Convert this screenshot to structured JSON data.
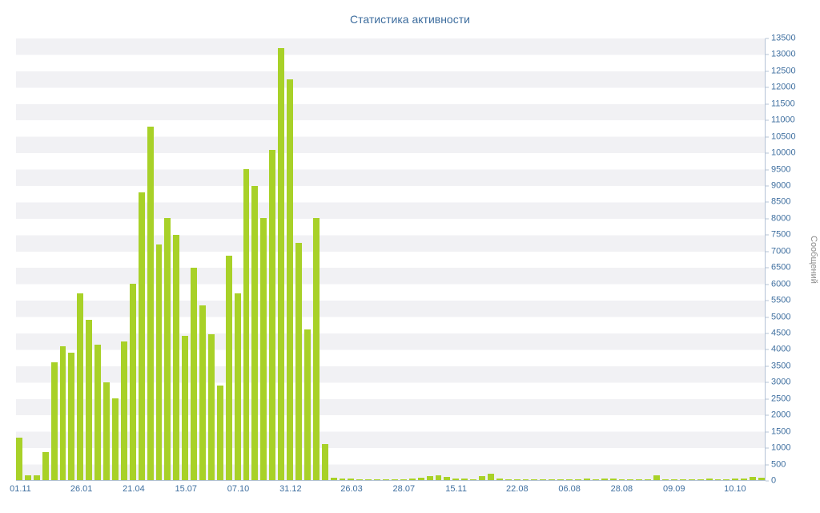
{
  "chart": {
    "title": "Статистика активности",
    "y_axis_title": "Сообщений",
    "colors": {
      "bar": "#a8d128",
      "axis_text": "#4070a0",
      "title_text": "#3d6d9e",
      "stripe": "#f1f1f4",
      "axis_line": "#b4c3d6",
      "y_title_text": "#8b8b8b"
    }
  },
  "chart_data": {
    "type": "bar",
    "title": "Статистика активности",
    "xlabel": "",
    "ylabel": "Сообщений",
    "ylim": [
      0,
      13500
    ],
    "y_tick_step": 500,
    "grid": "horizontal-stripes",
    "legend": "none",
    "y_ticks": [
      0,
      500,
      1000,
      1500,
      2000,
      2500,
      3000,
      3500,
      4000,
      4500,
      5000,
      5500,
      6000,
      6500,
      7000,
      7500,
      8000,
      8500,
      9000,
      9500,
      10000,
      10500,
      11000,
      11500,
      12000,
      12500,
      13000,
      13500
    ],
    "values": [
      1300,
      150,
      150,
      850,
      3600,
      4100,
      3900,
      5700,
      4900,
      4150,
      3000,
      2500,
      4250,
      6000,
      8800,
      10800,
      7200,
      8000,
      7500,
      4400,
      6500,
      5350,
      4450,
      2900,
      6850,
      5700,
      9500,
      9000,
      8000,
      10100,
      13200,
      12250,
      7250,
      4600,
      8000,
      1100,
      80,
      50,
      40,
      30,
      20,
      30,
      20,
      30,
      20,
      40,
      80,
      120,
      150,
      100,
      60,
      40,
      30,
      120,
      200,
      40,
      30,
      20,
      30,
      20,
      20,
      30,
      20,
      30,
      20,
      40,
      30,
      60,
      40,
      30,
      20,
      30,
      30,
      150,
      20,
      30,
      20,
      30,
      20,
      40,
      30,
      20,
      40,
      60,
      100,
      80
    ],
    "x_tick_labels": [
      {
        "label": "01.11",
        "index": 0
      },
      {
        "label": "26.01",
        "index": 7
      },
      {
        "label": "21.04",
        "index": 13
      },
      {
        "label": "15.07",
        "index": 19
      },
      {
        "label": "07.10",
        "index": 25
      },
      {
        "label": "31.12",
        "index": 31
      },
      {
        "label": "26.03",
        "index": 38
      },
      {
        "label": "28.07",
        "index": 44
      },
      {
        "label": "15.11",
        "index": 50
      },
      {
        "label": "22.08",
        "index": 57
      },
      {
        "label": "06.08",
        "index": 63
      },
      {
        "label": "28.08",
        "index": 69
      },
      {
        "label": "09.09",
        "index": 75
      },
      {
        "label": "10.10",
        "index": 82
      }
    ]
  }
}
